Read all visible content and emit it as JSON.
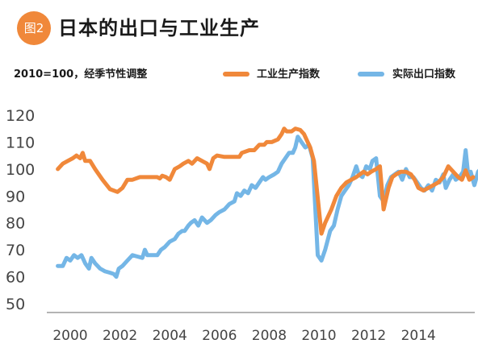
{
  "header": {
    "badge": "图2",
    "title": "日本的出口与工业生产"
  },
  "subtitle": "2010=100，经季节性调整",
  "colors": {
    "orange": "#f0883a",
    "blue": "#74b6e6",
    "axis": "#888888",
    "text": "#1a1a1a"
  },
  "chart_data": {
    "type": "line",
    "legend": {
      "position": "top-right"
    },
    "grid": false,
    "xlim": [
      1999.5,
      2015.9
    ],
    "ylim": [
      50,
      120
    ],
    "x_ticks": [
      2000,
      2002,
      2004,
      2006,
      2008,
      2010,
      2012,
      2014
    ],
    "x_tick_labels": [
      "2000",
      "2002",
      "2004",
      "2006",
      "2008",
      "2010",
      "2012",
      "2014"
    ],
    "y_ticks": [
      50,
      60,
      70,
      80,
      90,
      100,
      110,
      120
    ],
    "y_tick_labels": [
      "50",
      "60",
      "70",
      "80",
      "90",
      "100",
      "110",
      "120"
    ],
    "series": [
      {
        "name": "工业生产指数",
        "color": "#f0883a",
        "points": [
          [
            1999.5,
            100
          ],
          [
            1999.7,
            102
          ],
          [
            1999.9,
            103
          ],
          [
            2000.1,
            104
          ],
          [
            2000.25,
            105
          ],
          [
            2000.4,
            104
          ],
          [
            2000.5,
            106
          ],
          [
            2000.6,
            103
          ],
          [
            2000.8,
            103
          ],
          [
            2001.0,
            100
          ],
          [
            2001.3,
            96
          ],
          [
            2001.6,
            92.5
          ],
          [
            2001.9,
            91.5
          ],
          [
            2002.1,
            93
          ],
          [
            2002.3,
            96
          ],
          [
            2002.5,
            96
          ],
          [
            2002.8,
            97
          ],
          [
            2003.0,
            97
          ],
          [
            2003.3,
            97
          ],
          [
            2003.5,
            97
          ],
          [
            2003.6,
            96.5
          ],
          [
            2003.7,
            97.5
          ],
          [
            2003.85,
            97
          ],
          [
            2004.0,
            96
          ],
          [
            2004.2,
            100
          ],
          [
            2004.4,
            101
          ],
          [
            2004.55,
            102
          ],
          [
            2004.75,
            103
          ],
          [
            2004.9,
            102
          ],
          [
            2005.1,
            104
          ],
          [
            2005.3,
            103
          ],
          [
            2005.5,
            102
          ],
          [
            2005.6,
            100
          ],
          [
            2005.75,
            104
          ],
          [
            2005.9,
            105
          ],
          [
            2006.2,
            104.5
          ],
          [
            2006.5,
            104.5
          ],
          [
            2006.8,
            104.5
          ],
          [
            2006.9,
            106
          ],
          [
            2007.2,
            107
          ],
          [
            2007.4,
            107
          ],
          [
            2007.6,
            109
          ],
          [
            2007.8,
            109
          ],
          [
            2007.9,
            110
          ],
          [
            2008.1,
            110
          ],
          [
            2008.35,
            111
          ],
          [
            2008.5,
            113
          ],
          [
            2008.6,
            115
          ],
          [
            2008.7,
            114
          ],
          [
            2008.9,
            114
          ],
          [
            2009.05,
            115
          ],
          [
            2009.25,
            114.5
          ],
          [
            2009.4,
            113
          ],
          [
            2009.55,
            110
          ],
          [
            2009.65,
            108
          ],
          [
            2009.8,
            103
          ],
          [
            2010.1,
            76
          ],
          [
            2010.25,
            80
          ],
          [
            2010.5,
            85
          ],
          [
            2010.7,
            90
          ],
          [
            2010.9,
            93
          ],
          [
            2011.1,
            95
          ],
          [
            2011.3,
            96
          ],
          [
            2011.5,
            97
          ],
          [
            2011.65,
            98
          ],
          [
            2011.8,
            99
          ],
          [
            2011.95,
            98
          ],
          [
            2012.1,
            99
          ],
          [
            2012.3,
            100
          ],
          [
            2012.45,
            101
          ],
          [
            2012.6,
            85
          ],
          [
            2012.8,
            93
          ],
          [
            2012.95,
            97
          ],
          [
            2013.1,
            98
          ],
          [
            2013.3,
            99
          ],
          [
            2013.5,
            99
          ],
          [
            2013.7,
            98
          ],
          [
            2013.85,
            96
          ],
          [
            2014.0,
            93
          ],
          [
            2014.2,
            92
          ],
          [
            2014.4,
            93
          ],
          [
            2014.6,
            94
          ],
          [
            2014.8,
            95
          ],
          [
            2015.0,
            97
          ],
          [
            2015.2,
            101
          ],
          [
            2015.4,
            99
          ],
          [
            2015.6,
            97
          ],
          [
            2015.75,
            96
          ],
          [
            2015.9,
            99.5
          ],
          [
            2016.05,
            96
          ],
          [
            2016.2,
            97
          ]
        ]
      },
      {
        "name": "实际出口指数",
        "color": "#74b6e6",
        "points": [
          [
            1999.5,
            64
          ],
          [
            1999.7,
            64
          ],
          [
            1999.85,
            67
          ],
          [
            2000.0,
            66
          ],
          [
            2000.15,
            68
          ],
          [
            2000.3,
            67
          ],
          [
            2000.45,
            68
          ],
          [
            2000.6,
            65
          ],
          [
            2000.75,
            63
          ],
          [
            2000.85,
            67
          ],
          [
            2001.0,
            65
          ],
          [
            2001.2,
            63
          ],
          [
            2001.4,
            62
          ],
          [
            2001.6,
            61.5
          ],
          [
            2001.75,
            61
          ],
          [
            2001.85,
            60
          ],
          [
            2001.95,
            63
          ],
          [
            2002.1,
            64
          ],
          [
            2002.3,
            66
          ],
          [
            2002.5,
            68
          ],
          [
            2002.7,
            67.5
          ],
          [
            2002.9,
            67
          ],
          [
            2003.0,
            70
          ],
          [
            2003.1,
            68
          ],
          [
            2003.3,
            68
          ],
          [
            2003.5,
            68
          ],
          [
            2003.65,
            70
          ],
          [
            2003.8,
            71
          ],
          [
            2004.0,
            73
          ],
          [
            2004.2,
            74
          ],
          [
            2004.35,
            76
          ],
          [
            2004.5,
            77
          ],
          [
            2004.6,
            77
          ],
          [
            2004.75,
            79
          ],
          [
            2004.85,
            80
          ],
          [
            2005.0,
            81
          ],
          [
            2005.15,
            79
          ],
          [
            2005.3,
            82
          ],
          [
            2005.5,
            80
          ],
          [
            2005.65,
            81
          ],
          [
            2005.85,
            83
          ],
          [
            2006.0,
            84
          ],
          [
            2006.2,
            85
          ],
          [
            2006.4,
            87
          ],
          [
            2006.6,
            88
          ],
          [
            2006.7,
            91
          ],
          [
            2006.85,
            90
          ],
          [
            2007.0,
            92
          ],
          [
            2007.15,
            91
          ],
          [
            2007.3,
            94
          ],
          [
            2007.45,
            93
          ],
          [
            2007.6,
            95
          ],
          [
            2007.75,
            97
          ],
          [
            2007.85,
            96
          ],
          [
            2008.0,
            97
          ],
          [
            2008.2,
            98
          ],
          [
            2008.35,
            99
          ],
          [
            2008.5,
            102
          ],
          [
            2008.65,
            104
          ],
          [
            2008.8,
            106
          ],
          [
            2008.95,
            106
          ],
          [
            2009.05,
            108
          ],
          [
            2009.15,
            112
          ],
          [
            2009.3,
            110
          ],
          [
            2009.45,
            108
          ],
          [
            2009.6,
            109
          ],
          [
            2009.75,
            104
          ],
          [
            2009.95,
            68
          ],
          [
            2010.1,
            66
          ],
          [
            2010.25,
            70
          ],
          [
            2010.45,
            77
          ],
          [
            2010.6,
            79
          ],
          [
            2010.75,
            85
          ],
          [
            2010.9,
            90
          ],
          [
            2011.05,
            92
          ],
          [
            2011.2,
            94
          ],
          [
            2011.35,
            97
          ],
          [
            2011.5,
            101
          ],
          [
            2011.6,
            98
          ],
          [
            2011.75,
            97
          ],
          [
            2011.9,
            101
          ],
          [
            2012.05,
            100
          ],
          [
            2012.15,
            103
          ],
          [
            2012.3,
            104
          ],
          [
            2012.45,
            90
          ],
          [
            2012.6,
            88
          ],
          [
            2012.75,
            94
          ],
          [
            2012.9,
            97
          ],
          [
            2013.05,
            98
          ],
          [
            2013.2,
            99
          ],
          [
            2013.35,
            96
          ],
          [
            2013.5,
            100
          ],
          [
            2013.65,
            97
          ],
          [
            2013.8,
            97
          ],
          [
            2013.95,
            95
          ],
          [
            2014.1,
            93
          ],
          [
            2014.25,
            92
          ],
          [
            2014.4,
            94
          ],
          [
            2014.55,
            92
          ],
          [
            2014.7,
            96
          ],
          [
            2014.85,
            95
          ],
          [
            2015.0,
            98
          ],
          [
            2015.1,
            93
          ],
          [
            2015.25,
            96
          ],
          [
            2015.4,
            98
          ],
          [
            2015.5,
            96
          ],
          [
            2015.65,
            97
          ],
          [
            2015.8,
            99
          ],
          [
            2015.9,
            107
          ],
          [
            2016.0,
            98
          ],
          [
            2016.1,
            99
          ],
          [
            2016.25,
            94
          ],
          [
            2016.4,
            99
          ],
          [
            2016.5,
            100
          ],
          [
            2016.6,
            97
          ]
        ]
      }
    ]
  }
}
